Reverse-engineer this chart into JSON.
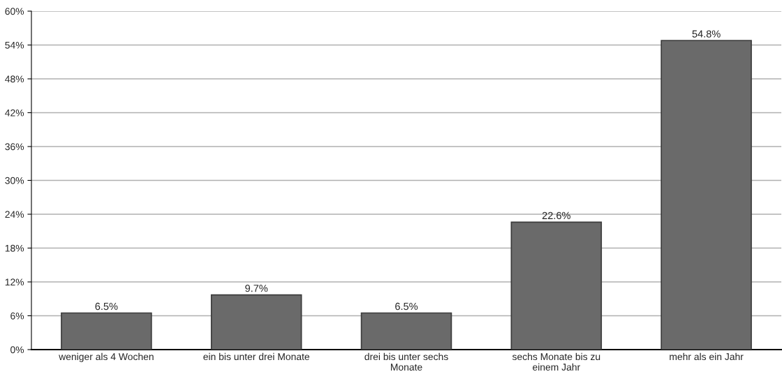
{
  "chart_data": {
    "type": "bar",
    "categories": [
      "weniger als 4 Wochen",
      "ein bis unter drei Monate",
      "drei bis unter sechs\nMonate",
      "sechs Monate bis zu\neinem Jahr",
      "mehr als ein Jahr"
    ],
    "values": [
      6.5,
      9.7,
      6.5,
      22.6,
      54.8
    ],
    "value_labels": [
      "6.5%",
      "9.7%",
      "6.5%",
      "22.6%",
      "54.8%"
    ],
    "color": "#6a6a6a",
    "ylim": [
      0,
      60
    ],
    "yticks": [
      {
        "value": 0,
        "label": "0%"
      },
      {
        "value": 6,
        "label": "6%"
      },
      {
        "value": 12,
        "label": "12%"
      },
      {
        "value": 18,
        "label": "18%"
      },
      {
        "value": 24,
        "label": "24%"
      },
      {
        "value": 30,
        "label": "30%"
      },
      {
        "value": 36,
        "label": "36%"
      },
      {
        "value": 42,
        "label": "42%"
      },
      {
        "value": 48,
        "label": "48%"
      },
      {
        "value": 54,
        "label": "54%"
      },
      {
        "value": 60,
        "label": "60%"
      }
    ],
    "grid": "y"
  }
}
